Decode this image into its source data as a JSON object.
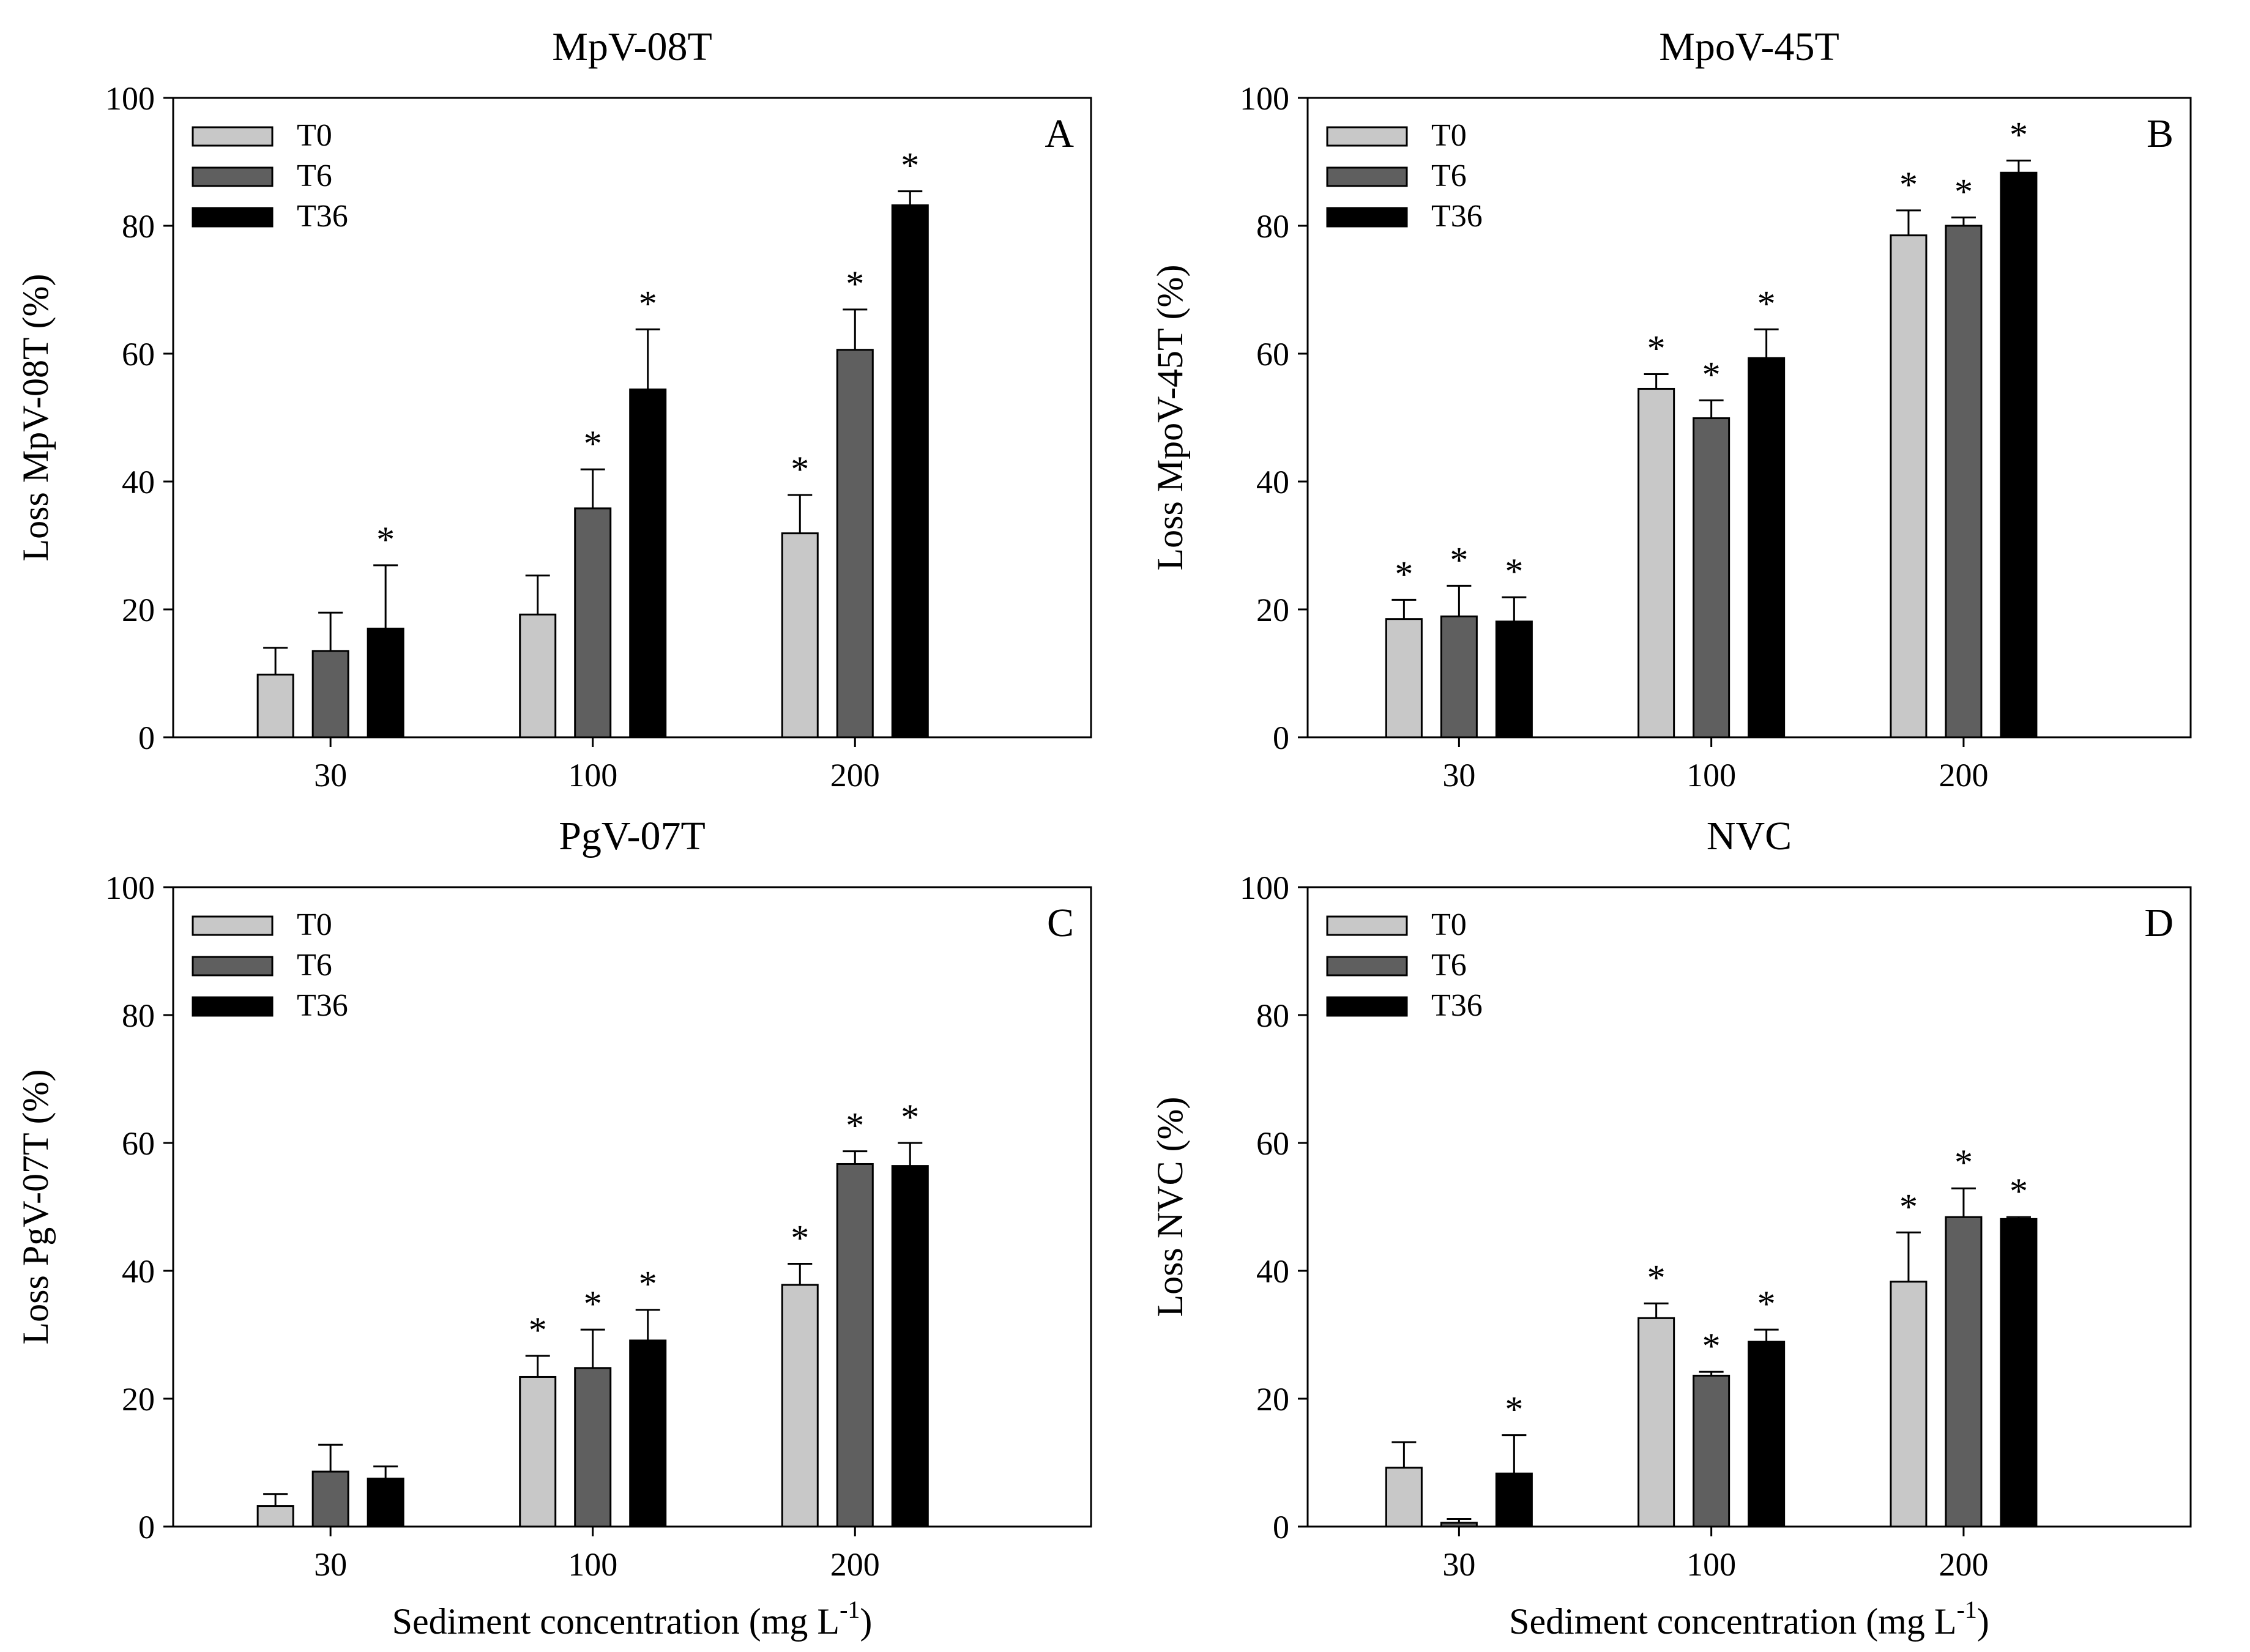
{
  "figure": {
    "xlabel_main": "Sediment concentration (mg L",
    "xlabel_sup": "-1",
    "xlabel_close": ")"
  },
  "colors": {
    "T0": "#c8c8c8",
    "T6": "#5f5f5f",
    "T36": "#000000"
  },
  "chart_data": [
    {
      "type": "bar",
      "panel": "A",
      "title": "MpV-08T",
      "ylabel": "Loss MpV-08T (%)",
      "xlabel": "",
      "ylim": [
        0,
        100
      ],
      "yticks": [
        0,
        20,
        40,
        60,
        80,
        100
      ],
      "categories": [
        "30",
        "100",
        "200"
      ],
      "legend_position": "top-left",
      "series": [
        {
          "name": "T0",
          "values": [
            9.8,
            19.2,
            31.9
          ],
          "errors": [
            4.2,
            6.1,
            6.0
          ],
          "sig": [
            false,
            false,
            true
          ]
        },
        {
          "name": "T6",
          "values": [
            13.5,
            35.8,
            60.6
          ],
          "errors": [
            6.0,
            6.1,
            6.3
          ],
          "sig": [
            false,
            true,
            true
          ]
        },
        {
          "name": "T36",
          "values": [
            17.0,
            54.4,
            83.2
          ],
          "errors": [
            9.9,
            9.4,
            2.2
          ],
          "sig": [
            true,
            true,
            true
          ]
        }
      ]
    },
    {
      "type": "bar",
      "panel": "B",
      "title": "MpoV-45T",
      "ylabel": "Loss MpoV-45T (%)",
      "xlabel": "",
      "ylim": [
        0,
        100
      ],
      "yticks": [
        0,
        20,
        40,
        60,
        80,
        100
      ],
      "categories": [
        "30",
        "100",
        "200"
      ],
      "legend_position": "top-left",
      "series": [
        {
          "name": "T0",
          "values": [
            18.5,
            54.5,
            78.5
          ],
          "errors": [
            3.0,
            2.3,
            3.9
          ],
          "sig": [
            true,
            true,
            true
          ]
        },
        {
          "name": "T6",
          "values": [
            18.9,
            49.9,
            80.0
          ],
          "errors": [
            4.8,
            2.8,
            1.3
          ],
          "sig": [
            true,
            true,
            true
          ]
        },
        {
          "name": "T36",
          "values": [
            18.1,
            59.3,
            88.3
          ],
          "errors": [
            3.8,
            4.5,
            1.9
          ],
          "sig": [
            true,
            true,
            true
          ]
        }
      ]
    },
    {
      "type": "bar",
      "panel": "C",
      "title": "PgV-07T",
      "ylabel": "Loss PgV-07T (%)",
      "xlabel": "Sediment concentration (mg L-1)",
      "ylim": [
        0,
        100
      ],
      "yticks": [
        0,
        20,
        40,
        60,
        80,
        100
      ],
      "categories": [
        "30",
        "100",
        "200"
      ],
      "legend_position": "top-left",
      "series": [
        {
          "name": "T0",
          "values": [
            3.2,
            23.4,
            37.8
          ],
          "errors": [
            1.9,
            3.3,
            3.3
          ],
          "sig": [
            false,
            true,
            true
          ]
        },
        {
          "name": "T6",
          "values": [
            8.6,
            24.8,
            56.7
          ],
          "errors": [
            4.2,
            6.0,
            2.0
          ],
          "sig": [
            false,
            true,
            true
          ]
        },
        {
          "name": "T36",
          "values": [
            7.5,
            29.1,
            56.4
          ],
          "errors": [
            1.9,
            4.8,
            3.6
          ],
          "sig": [
            false,
            true,
            true
          ]
        }
      ]
    },
    {
      "type": "bar",
      "panel": "D",
      "title": "NVC",
      "ylabel": "Loss NVC (%)",
      "xlabel": "Sediment concentration (mg L-1)",
      "ylim": [
        0,
        100
      ],
      "yticks": [
        0,
        20,
        40,
        60,
        80,
        100
      ],
      "categories": [
        "30",
        "100",
        "200"
      ],
      "legend_position": "top-left",
      "series": [
        {
          "name": "T0",
          "values": [
            9.2,
            32.6,
            38.3
          ],
          "errors": [
            4.0,
            2.3,
            7.7
          ],
          "sig": [
            false,
            true,
            true
          ]
        },
        {
          "name": "T6",
          "values": [
            0.6,
            23.6,
            48.4
          ],
          "errors": [
            0.6,
            0.6,
            4.5
          ],
          "sig": [
            false,
            true,
            true
          ]
        },
        {
          "name": "T36",
          "values": [
            8.3,
            28.9,
            48.1
          ],
          "errors": [
            6.0,
            1.9,
            0.3
          ],
          "sig": [
            true,
            true,
            true
          ]
        }
      ]
    }
  ]
}
